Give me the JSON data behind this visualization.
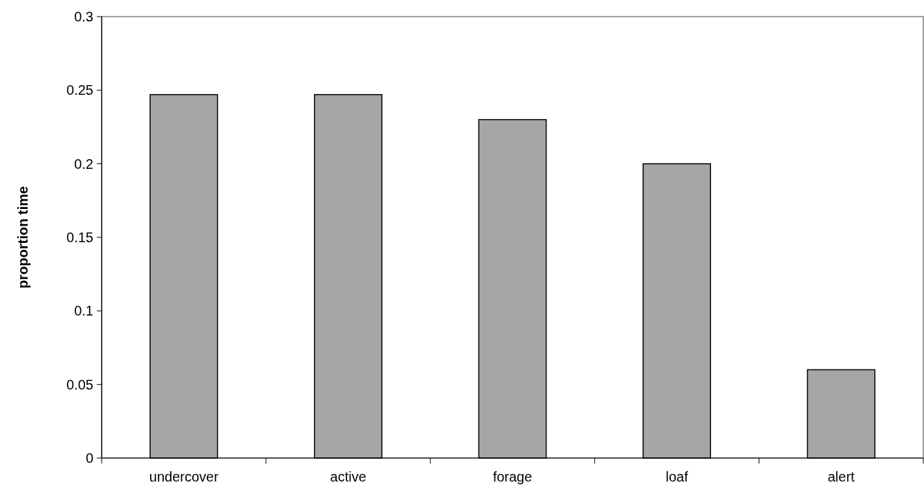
{
  "chart_data": {
    "type": "bar",
    "ylabel": "proportion time",
    "categories": [
      "undercover",
      "active",
      "forage",
      "loaf",
      "alert"
    ],
    "values": [
      0.247,
      0.247,
      0.23,
      0.2,
      0.06
    ],
    "color": "#a6a6a6",
    "ylim": [
      0,
      0.3
    ],
    "yticks": [
      0,
      0.05,
      0.1,
      0.15,
      0.2,
      0.25,
      0.3
    ],
    "grid": false
  }
}
